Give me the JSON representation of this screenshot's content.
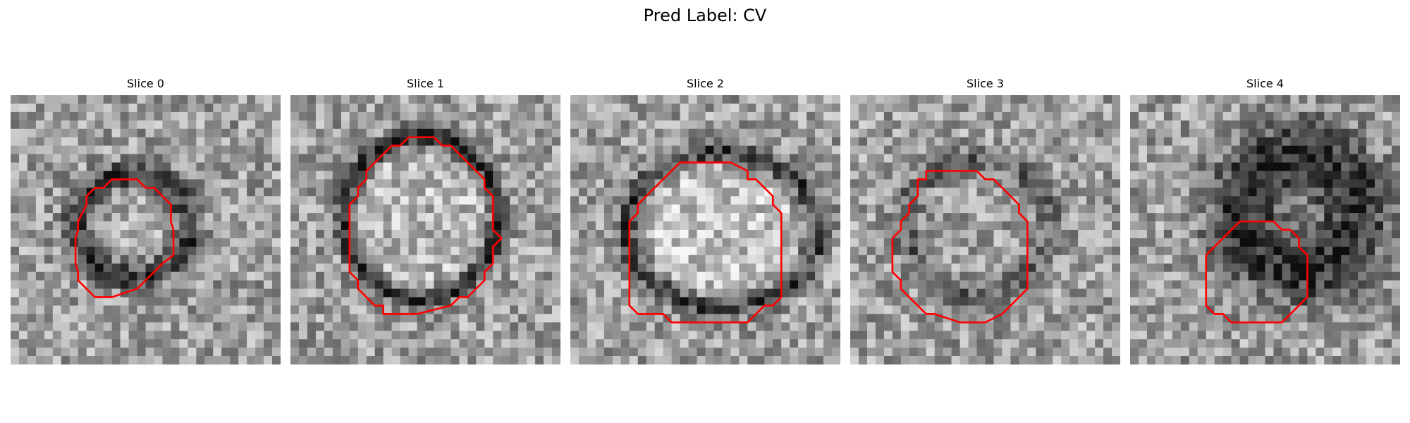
{
  "figure": {
    "suptitle": "Pred Label: CV"
  },
  "panels": [
    {
      "title": "Slice 0"
    },
    {
      "title": "Slice 1"
    },
    {
      "title": "Slice 2"
    },
    {
      "title": "Slice 3"
    },
    {
      "title": "Slice 4"
    }
  ],
  "style": {
    "contour_color": "#ff0000",
    "colormap": "grayscale"
  }
}
